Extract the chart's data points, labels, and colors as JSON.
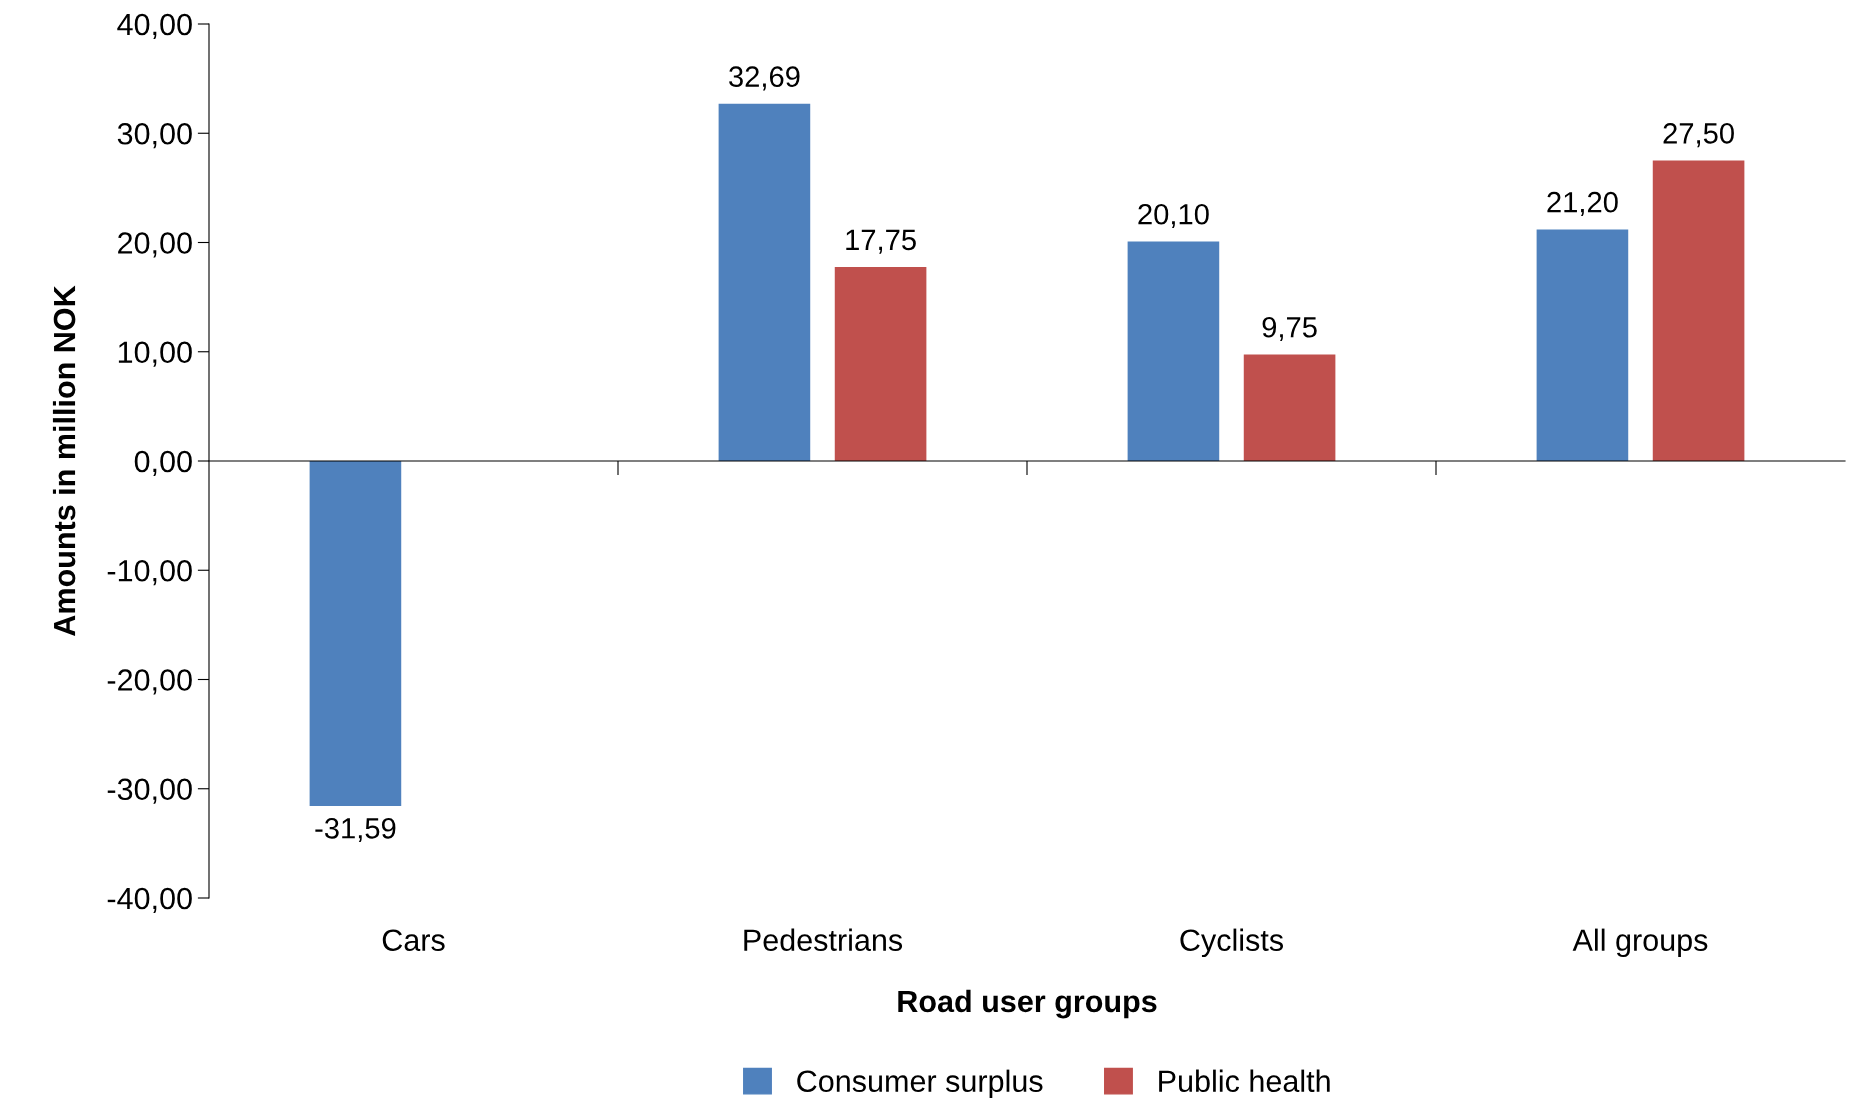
{
  "chart_data": {
    "type": "bar",
    "xlabel": "Road user groups",
    "ylabel": "Amounts in million NOK",
    "categories": [
      "Cars",
      "Pedestrians",
      "Cyclists",
      "All groups"
    ],
    "series": [
      {
        "name": "Consumer surplus",
        "color": "#4f81bd",
        "values": [
          -31.59,
          32.69,
          20.1,
          21.2
        ],
        "value_labels": [
          "-31,59",
          "32,69",
          "20,10",
          "21,20"
        ]
      },
      {
        "name": "Public health",
        "color": "#c0504d",
        "values": [
          null,
          17.75,
          9.75,
          27.5
        ],
        "value_labels": [
          null,
          "17,75",
          "9,75",
          "27,50"
        ]
      }
    ],
    "ylim": [
      -40,
      40
    ],
    "yticks": [
      {
        "value": -40,
        "label": "-40,00"
      },
      {
        "value": -30,
        "label": "-30,00"
      },
      {
        "value": -20,
        "label": "-20,00"
      },
      {
        "value": -10,
        "label": "-10,00"
      },
      {
        "value": 0,
        "label": "0,00"
      },
      {
        "value": 10,
        "label": "10,00"
      },
      {
        "value": 20,
        "label": "20,00"
      },
      {
        "value": 30,
        "label": "30,00"
      },
      {
        "value": 40,
        "label": "40,00"
      }
    ],
    "legend": "bottom"
  }
}
